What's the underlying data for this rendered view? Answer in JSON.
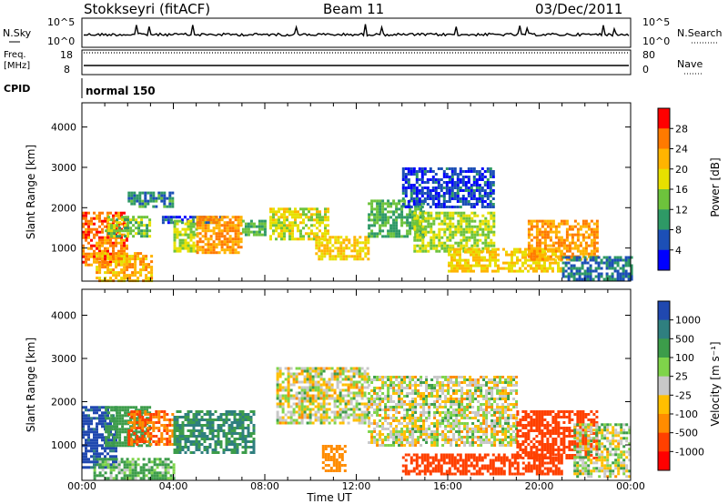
{
  "header": {
    "title": "Stokkseyri (fitACF)",
    "beam": "Beam 11",
    "date": "03/Dec/2011"
  },
  "top_panels": {
    "nsky": {
      "label": "N.Sky",
      "ticks": [
        "10^5",
        "10^0"
      ]
    },
    "nsearch": {
      "label": "N.Search",
      "ticks": [
        "10^5",
        "10^0"
      ]
    },
    "freq": {
      "label_1": "Freq.",
      "label_2": "[MHz]",
      "ticks": [
        "18",
        "8"
      ]
    },
    "nave": {
      "label": "Nave",
      "ticks": [
        "80",
        "0"
      ]
    },
    "cpid": {
      "label": "CPID",
      "value": "normal 150"
    }
  },
  "axes": {
    "ylabel": "Slant Range [km]",
    "yticks": [
      "4000",
      "3000",
      "2000",
      "1000"
    ],
    "xlabel": "Time UT",
    "xticks": [
      "00:00",
      "04:00",
      "08:00",
      "12:00",
      "16:00",
      "20:00",
      "00:00"
    ]
  },
  "colorbars": {
    "power": {
      "label": "Power [dB]",
      "ticks": [
        "28",
        "24",
        "20",
        "16",
        "12",
        "8",
        "4"
      ],
      "colors": [
        "#ff0000",
        "#ff7a00",
        "#ffb400",
        "#e7e000",
        "#6dc33c",
        "#2e9966",
        "#1c4fb6",
        "#0000ff"
      ]
    },
    "velocity": {
      "label": "Velocity [m s⁻¹]",
      "ticks": [
        "1000",
        "500",
        "100",
        "25",
        "-25",
        "-100",
        "-500",
        "-1000"
      ],
      "colors": [
        "#2048b0",
        "#2f7f7f",
        "#3c9c4a",
        "#7fd44a",
        "#c8c8c8",
        "#ffbf00",
        "#ff8c00",
        "#ff4000",
        "#ff0000"
      ]
    }
  },
  "chart_data": [
    {
      "type": "heatmap",
      "title": "Power",
      "xlabel": "Time UT",
      "ylabel": "Slant Range [km]",
      "xlim": [
        "00:00",
        "24:00"
      ],
      "ylim": [
        180,
        4600
      ],
      "colorbar": {
        "label": "Power [dB]",
        "range": [
          0,
          32
        ]
      },
      "regions": [
        {
          "t": [
            0.0,
            2.0
          ],
          "r": [
            600,
            1900
          ],
          "v": 26
        },
        {
          "t": [
            0.6,
            3.0
          ],
          "r": [
            200,
            900
          ],
          "v": 22
        },
        {
          "t": [
            1.0,
            3.0
          ],
          "r": [
            1300,
            1800
          ],
          "v": 14
        },
        {
          "t": [
            2.0,
            4.0
          ],
          "r": [
            2000,
            2400
          ],
          "v": 9
        },
        {
          "t": [
            3.5,
            6.2
          ],
          "r": [
            1600,
            1800
          ],
          "v": 6
        },
        {
          "t": [
            4.0,
            5.0
          ],
          "r": [
            900,
            1700
          ],
          "v": 16
        },
        {
          "t": [
            5.0,
            7.0
          ],
          "r": [
            900,
            1800
          ],
          "v": 24
        },
        {
          "t": [
            7.0,
            8.0
          ],
          "r": [
            1300,
            1700
          ],
          "v": 12
        },
        {
          "t": [
            8.2,
            10.8
          ],
          "r": [
            1200,
            2000
          ],
          "v": 18
        },
        {
          "t": [
            10.2,
            12.5
          ],
          "r": [
            700,
            1300
          ],
          "v": 20
        },
        {
          "t": [
            12.5,
            15.0
          ],
          "r": [
            1300,
            2200
          ],
          "v": 12
        },
        {
          "t": [
            14.0,
            18.0
          ],
          "r": [
            2000,
            3000
          ],
          "v": 5
        },
        {
          "t": [
            14.5,
            18.0
          ],
          "r": [
            900,
            1900
          ],
          "v": 16
        },
        {
          "t": [
            16.0,
            21.0
          ],
          "r": [
            400,
            1000
          ],
          "v": 20
        },
        {
          "t": [
            19.5,
            22.5
          ],
          "r": [
            700,
            1700
          ],
          "v": 24
        },
        {
          "t": [
            21.0,
            24.0
          ],
          "r": [
            200,
            800
          ],
          "v": 8
        }
      ]
    },
    {
      "type": "heatmap",
      "title": "Velocity",
      "xlabel": "Time UT",
      "ylabel": "Slant Range [km]",
      "xlim": [
        "00:00",
        "24:00"
      ],
      "ylim": [
        180,
        4600
      ],
      "colorbar": {
        "label": "Velocity [m s⁻¹]",
        "range": [
          -1000,
          1000
        ]
      },
      "regions": [
        {
          "t": [
            0.0,
            1.5
          ],
          "r": [
            500,
            1900
          ],
          "v": 800
        },
        {
          "t": [
            1.0,
            3.0
          ],
          "r": [
            1000,
            1900
          ],
          "v": 150
        },
        {
          "t": [
            2.0,
            4.0
          ],
          "r": [
            1000,
            1800
          ],
          "v": -300
        },
        {
          "t": [
            4.0,
            7.5
          ],
          "r": [
            800,
            1800
          ],
          "v": 300
        },
        {
          "t": [
            0.5,
            4.0
          ],
          "r": [
            200,
            700
          ],
          "v": 80
        },
        {
          "t": [
            8.5,
            12.5
          ],
          "r": [
            1500,
            2800
          ],
          "v": 0
        },
        {
          "t": [
            10.5,
            11.5
          ],
          "r": [
            400,
            1000
          ],
          "v": -200
        },
        {
          "t": [
            12.5,
            19.0
          ],
          "r": [
            1000,
            2600
          ],
          "v": 0
        },
        {
          "t": [
            14.0,
            21.0
          ],
          "r": [
            300,
            800
          ],
          "v": -400
        },
        {
          "t": [
            19.0,
            22.5
          ],
          "r": [
            700,
            1800
          ],
          "v": -600
        },
        {
          "t": [
            21.5,
            24.0
          ],
          "r": [
            300,
            1500
          ],
          "v": 10
        }
      ]
    }
  ]
}
